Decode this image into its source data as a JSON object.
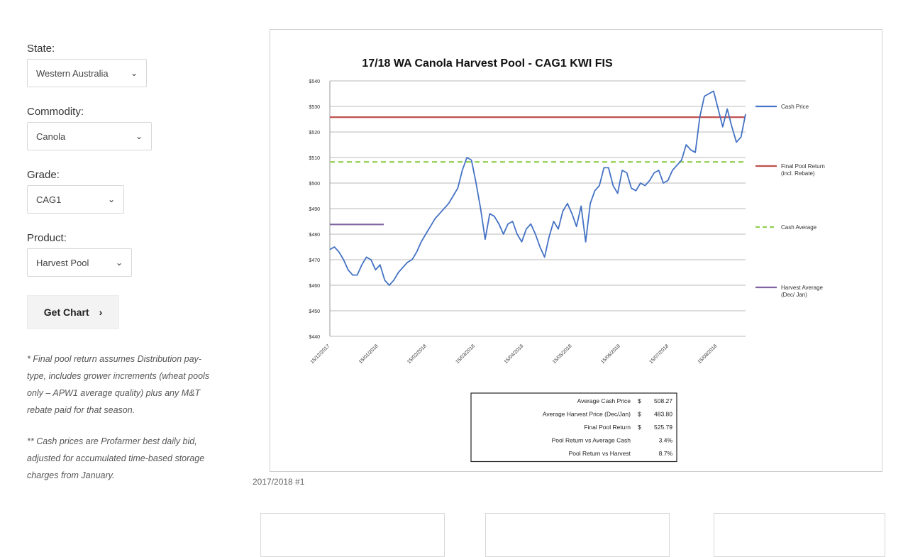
{
  "form": {
    "state": {
      "label": "State:",
      "value": "Western Australia"
    },
    "commodity": {
      "label": "Commodity:",
      "value": "Canola"
    },
    "grade": {
      "label": "Grade:",
      "value": "CAG1"
    },
    "product": {
      "label": "Product:",
      "value": "Harvest Pool"
    },
    "get_chart_label": "Get Chart"
  },
  "notes": [
    "* Final pool return assumes Distribution pay-type, includes grower increments (wheat pools only – APW1 average quality) plus any M&T rebate paid for that season.",
    "** Cash prices are Profarmer best daily bid, adjusted for accumulated time-based storage charges from January."
  ],
  "caption": "2017/2018 #1",
  "chart_data": {
    "type": "line",
    "title": "17/18 WA Canola Harvest Pool - CAG1 KWI FIS",
    "y_ticks": [
      "$440",
      "$450",
      "$460",
      "$470",
      "$480",
      "$490",
      "$500",
      "$510",
      "$520",
      "$530",
      "$540"
    ],
    "ylim": [
      440,
      540
    ],
    "x_ticks": [
      "15/12/2017",
      "15/01/2018",
      "15/02/2018",
      "15/03/2018",
      "15/04/2018",
      "15/05/2018",
      "15/06/2018",
      "15/07/2018",
      "15/08/2018"
    ],
    "series": [
      {
        "name": "Cash Price",
        "color": "#4472c4",
        "points": [
          [
            0,
            474
          ],
          [
            1,
            475
          ],
          [
            2,
            473
          ],
          [
            3,
            470
          ],
          [
            4,
            466
          ],
          [
            5,
            464
          ],
          [
            6,
            464
          ],
          [
            7,
            468
          ],
          [
            8,
            471
          ],
          [
            9,
            470
          ],
          [
            10,
            466
          ],
          [
            11,
            468
          ],
          [
            12,
            462
          ],
          [
            13,
            460
          ],
          [
            14,
            462
          ],
          [
            15,
            465
          ],
          [
            16,
            467
          ],
          [
            17,
            469
          ],
          [
            18,
            470
          ],
          [
            19,
            473
          ],
          [
            20,
            477
          ],
          [
            21,
            480
          ],
          [
            22,
            483
          ],
          [
            23,
            486
          ],
          [
            24,
            488
          ],
          [
            25,
            490
          ],
          [
            26,
            492
          ],
          [
            27,
            495
          ],
          [
            28,
            498
          ],
          [
            29,
            505
          ],
          [
            30,
            510
          ],
          [
            31,
            509
          ],
          [
            32,
            500
          ],
          [
            33,
            490
          ],
          [
            34,
            478
          ],
          [
            35,
            488
          ],
          [
            36,
            487
          ],
          [
            37,
            484
          ],
          [
            38,
            480
          ],
          [
            39,
            484
          ],
          [
            40,
            485
          ],
          [
            41,
            480
          ],
          [
            42,
            477
          ],
          [
            43,
            482
          ],
          [
            44,
            484
          ],
          [
            45,
            480
          ],
          [
            46,
            475
          ],
          [
            47,
            471
          ],
          [
            48,
            479
          ],
          [
            49,
            485
          ],
          [
            50,
            482
          ],
          [
            51,
            489
          ],
          [
            52,
            492
          ],
          [
            53,
            488
          ],
          [
            54,
            483
          ],
          [
            55,
            491
          ],
          [
            56,
            477
          ],
          [
            57,
            492
          ],
          [
            58,
            497
          ],
          [
            59,
            499
          ],
          [
            60,
            506
          ],
          [
            61,
            506
          ],
          [
            62,
            499
          ],
          [
            63,
            496
          ],
          [
            64,
            505
          ],
          [
            65,
            504
          ],
          [
            66,
            498
          ],
          [
            67,
            497
          ],
          [
            68,
            500
          ],
          [
            69,
            499
          ],
          [
            70,
            501
          ],
          [
            71,
            504
          ],
          [
            72,
            505
          ],
          [
            73,
            500
          ],
          [
            74,
            501
          ],
          [
            75,
            505
          ],
          [
            76,
            507
          ],
          [
            77,
            509
          ],
          [
            78,
            515
          ],
          [
            79,
            513
          ],
          [
            80,
            512
          ],
          [
            81,
            526
          ],
          [
            82,
            534
          ],
          [
            83,
            535
          ],
          [
            84,
            536
          ],
          [
            85,
            529
          ],
          [
            86,
            522
          ],
          [
            87,
            529
          ],
          [
            88,
            522
          ],
          [
            89,
            516
          ],
          [
            90,
            518
          ],
          [
            91,
            527
          ]
        ]
      },
      {
        "name": "Final Pool Return (incl. Rebate)",
        "color": "#c0504d",
        "value": 525.79
      },
      {
        "name": "Cash Average",
        "color": "#92d050",
        "value": 508.27
      },
      {
        "name": "Harvest Average (Dec/ Jan)",
        "color": "#8064a2",
        "value": 483.8
      }
    ],
    "legend": [
      "Cash Price",
      "Final Pool Return (incl. Rebate)",
      "Cash Average",
      "Harvest Average (Dec/ Jan)"
    ],
    "summary_table": [
      {
        "label": "Average Cash Price",
        "cur": "$",
        "value": "508.27"
      },
      {
        "label": "Average Harvest Price (Dec/Jan)",
        "cur": "$",
        "value": "483.80"
      },
      {
        "label": "Final Pool Return",
        "cur": "$",
        "value": "525.79"
      },
      {
        "label": "Pool Return vs Average Cash",
        "cur": "",
        "value": "3.4%"
      },
      {
        "label": "Pool Return vs Harvest",
        "cur": "",
        "value": "8.7%"
      }
    ]
  }
}
